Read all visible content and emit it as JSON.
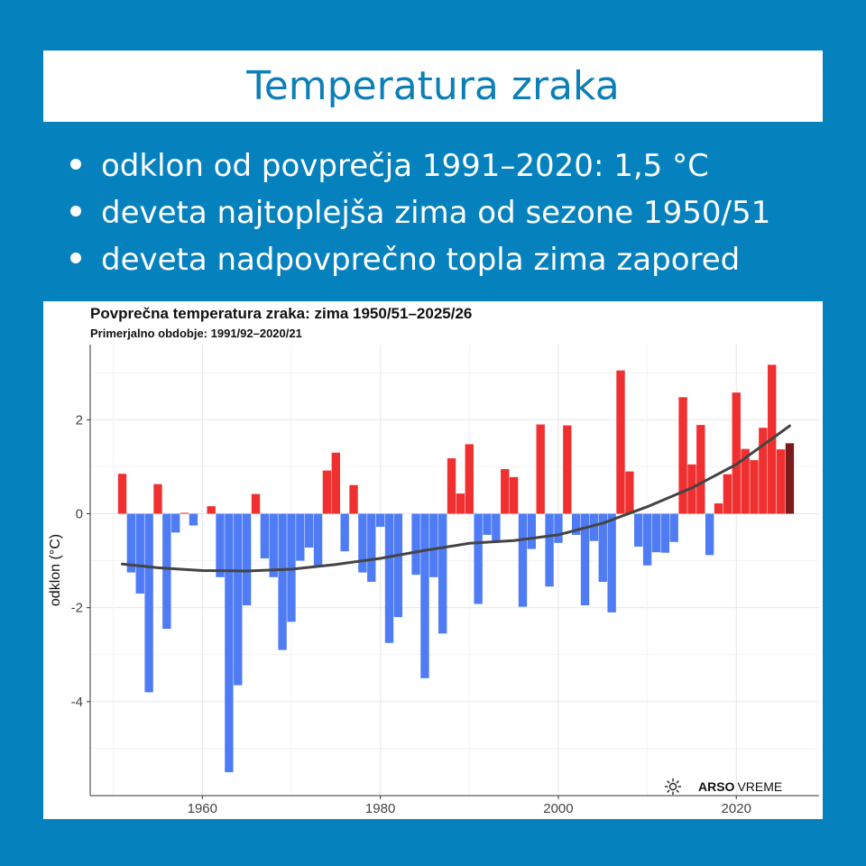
{
  "header": {
    "title": "Temperatura zraka"
  },
  "bullets": [
    "odklon od povprečja 1991–2020: 1,5 °C",
    "deveta najtoplejša zima od sezone 1950/51",
    "deveta nadpovprečno topla zima zapored"
  ],
  "logo": {
    "bold": "ARSO",
    "light": "VREME",
    "icon": "sun-snowflake-icon"
  },
  "colors": {
    "background": "#0582be",
    "title_text": "#0c7fb8",
    "positive": "#f03030",
    "negative": "#4f7cf5",
    "latest": "#7a1a1a",
    "trend": "#444444"
  },
  "chart_data": {
    "type": "bar",
    "title": "Povprečna temperatura zraka: zima 1950/51–2025/26",
    "subtitle": "Primerjalno obdobje: 1991/92–2020/21",
    "ylabel": "odklon (°C)",
    "xlabel": "",
    "xlim": [
      1947.4,
      2029.3
    ],
    "ylim": [
      -6.0,
      3.6
    ],
    "xticks": [
      1960,
      1980,
      2000,
      2020
    ],
    "yticks": [
      -4,
      -2,
      0,
      2
    ],
    "grid": true,
    "legend": "none",
    "x": [
      1951,
      1952,
      1953,
      1954,
      1955,
      1956,
      1957,
      1958,
      1959,
      1960,
      1961,
      1962,
      1963,
      1964,
      1965,
      1966,
      1967,
      1968,
      1969,
      1970,
      1971,
      1972,
      1973,
      1974,
      1975,
      1976,
      1977,
      1978,
      1979,
      1980,
      1981,
      1982,
      1983,
      1984,
      1985,
      1986,
      1987,
      1988,
      1989,
      1990,
      1991,
      1992,
      1993,
      1994,
      1995,
      1996,
      1997,
      1998,
      1999,
      2000,
      2001,
      2002,
      2003,
      2004,
      2005,
      2006,
      2007,
      2008,
      2009,
      2010,
      2011,
      2012,
      2013,
      2014,
      2015,
      2016,
      2017,
      2018,
      2019,
      2020,
      2021,
      2022,
      2023,
      2024,
      2025,
      2026
    ],
    "values": [
      0.85,
      -1.25,
      -1.7,
      -3.8,
      0.63,
      -2.45,
      -0.4,
      0.02,
      -0.25,
      0.0,
      0.16,
      -1.35,
      -5.5,
      -3.65,
      -1.95,
      0.42,
      -0.95,
      -1.35,
      -2.9,
      -2.3,
      -1.0,
      -0.72,
      -1.1,
      0.92,
      1.3,
      -0.8,
      0.61,
      -1.25,
      -1.45,
      -0.28,
      -2.75,
      -2.2,
      0.0,
      -1.3,
      -3.5,
      -1.35,
      -2.55,
      1.18,
      0.43,
      1.48,
      -1.92,
      -0.45,
      -0.6,
      0.95,
      0.78,
      -1.98,
      -0.75,
      1.9,
      -1.55,
      -0.62,
      1.88,
      -0.45,
      -1.95,
      -0.58,
      -1.45,
      -2.1,
      3.05,
      0.9,
      -0.7,
      -1.1,
      -0.82,
      -0.83,
      -0.6,
      2.48,
      1.05,
      1.89,
      -0.88,
      0.22,
      0.84,
      2.58,
      1.38,
      1.14,
      1.83,
      3.17,
      1.37,
      1.5
    ],
    "trend": {
      "x": [
        1951,
        1955,
        1960,
        1965,
        1970,
        1975,
        1980,
        1985,
        1990,
        1995,
        2000,
        2005,
        2010,
        2015,
        2020,
        2026
      ],
      "y": [
        -1.07,
        -1.15,
        -1.21,
        -1.22,
        -1.18,
        -1.08,
        -0.95,
        -0.78,
        -0.63,
        -0.57,
        -0.45,
        -0.2,
        0.15,
        0.55,
        1.05,
        1.87
      ]
    }
  }
}
